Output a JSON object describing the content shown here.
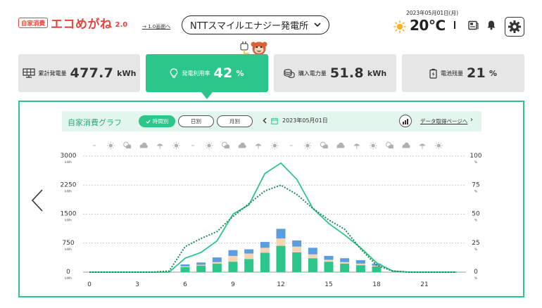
{
  "header": {
    "logo_badge": "自家消費",
    "logo_text": "エコめがね",
    "logo_version": "2.0",
    "old_link": "→ 1.0画面へ",
    "plant_name": "NTTスマイルエナジー発電所",
    "date": "2023年05月01日(月)",
    "temperature": "20℃",
    "colors": {
      "brand": "#e8453c",
      "accent": "#2cc58a"
    },
    "icons": [
      "sun-icon",
      "news-icon",
      "bell-icon",
      "gear-icon"
    ]
  },
  "cards": [
    {
      "icon": "solar-panel-icon",
      "label": "累計発電量",
      "value": "477.7",
      "unit": "kWh",
      "active": false
    },
    {
      "icon": "bulb-icon",
      "label": "発電利用率",
      "value": "42",
      "unit": "%",
      "active": true
    },
    {
      "icon": "coins-icon",
      "label": "購入電力量",
      "value": "51.8",
      "unit": "kWh",
      "active": false
    },
    {
      "icon": "battery-icon",
      "label": "電池残量",
      "value": "21",
      "unit": "%",
      "active": false
    }
  ],
  "graph": {
    "title": "自家消費グラフ",
    "tabs": [
      {
        "label": "時間別",
        "selected": true
      },
      {
        "label": "日別",
        "selected": false
      },
      {
        "label": "月別",
        "selected": false
      }
    ],
    "date": "2023年05月01日",
    "data_link": "データ取得ページへ"
  },
  "chart_data": {
    "type": "bar",
    "x": [
      0,
      1,
      2,
      3,
      4,
      5,
      6,
      7,
      8,
      9,
      10,
      11,
      12,
      13,
      14,
      15,
      16,
      17,
      18,
      19,
      20,
      21,
      22,
      23
    ],
    "x_tick_labels": [
      "0",
      "3",
      "6",
      "9",
      "12",
      "15",
      "18",
      "21"
    ],
    "x_tick_values": [
      0,
      3,
      6,
      9,
      12,
      15,
      18,
      21
    ],
    "y_left": {
      "ticks": [
        0,
        750,
        1500,
        2250,
        3000
      ],
      "tick_labels": [
        "0",
        "750",
        "1500",
        "2250",
        "3000"
      ],
      "unit": "kWh",
      "ylim": [
        0,
        3000
      ]
    },
    "y_right": {
      "ticks": [
        0,
        25,
        50,
        75,
        100
      ],
      "tick_labels": [
        "0",
        "25",
        "50",
        "75",
        "100"
      ],
      "unit": "%",
      "ylim": [
        0,
        100
      ]
    },
    "weather": [
      "-",
      "sun",
      "partly-cloudy",
      "cloud",
      "umbrella",
      "sun",
      "-",
      "sun",
      "partly-cloudy",
      "cloud",
      "umbrella",
      "sun",
      "-",
      "sun",
      "partly-cloudy",
      "cloud",
      "umbrella",
      "sun",
      "partly-cloudy",
      "cloud",
      "umbrella",
      "sun"
    ],
    "stacked_bars": [
      {
        "color": "#2cc58a",
        "values": [
          0,
          0,
          0,
          0,
          0,
          0,
          130,
          170,
          220,
          270,
          340,
          500,
          680,
          510,
          360,
          270,
          220,
          180,
          150,
          0,
          0,
          0,
          0,
          0
        ]
      },
      {
        "color": "#f7d4b4",
        "values": [
          0,
          0,
          0,
          0,
          0,
          0,
          20,
          20,
          40,
          150,
          140,
          130,
          190,
          150,
          100,
          50,
          40,
          40,
          20,
          0,
          0,
          0,
          0,
          0
        ]
      },
      {
        "color": "#5b9ee0",
        "values": [
          0,
          0,
          0,
          0,
          0,
          0,
          50,
          60,
          120,
          150,
          110,
          150,
          250,
          160,
          170,
          100,
          100,
          90,
          50,
          0,
          0,
          0,
          0,
          0
        ]
      }
    ],
    "lines": [
      {
        "style": "solid",
        "color": "#2cc58a",
        "axis": "right",
        "values": [
          0,
          0,
          0,
          0,
          0,
          0,
          12,
          17,
          27,
          50,
          58,
          85,
          94,
          80,
          55,
          42,
          32,
          21,
          8,
          1,
          0,
          0,
          0,
          0
        ]
      },
      {
        "style": "dotted",
        "color": "#1f8a5c",
        "axis": "right",
        "values": [
          0,
          0,
          0,
          0,
          0,
          1,
          22,
          29,
          35,
          48,
          59,
          70,
          75,
          67,
          55,
          45,
          37,
          20,
          6,
          1,
          0,
          0,
          0,
          0
        ]
      }
    ],
    "grid": "dotted-horizontal"
  }
}
